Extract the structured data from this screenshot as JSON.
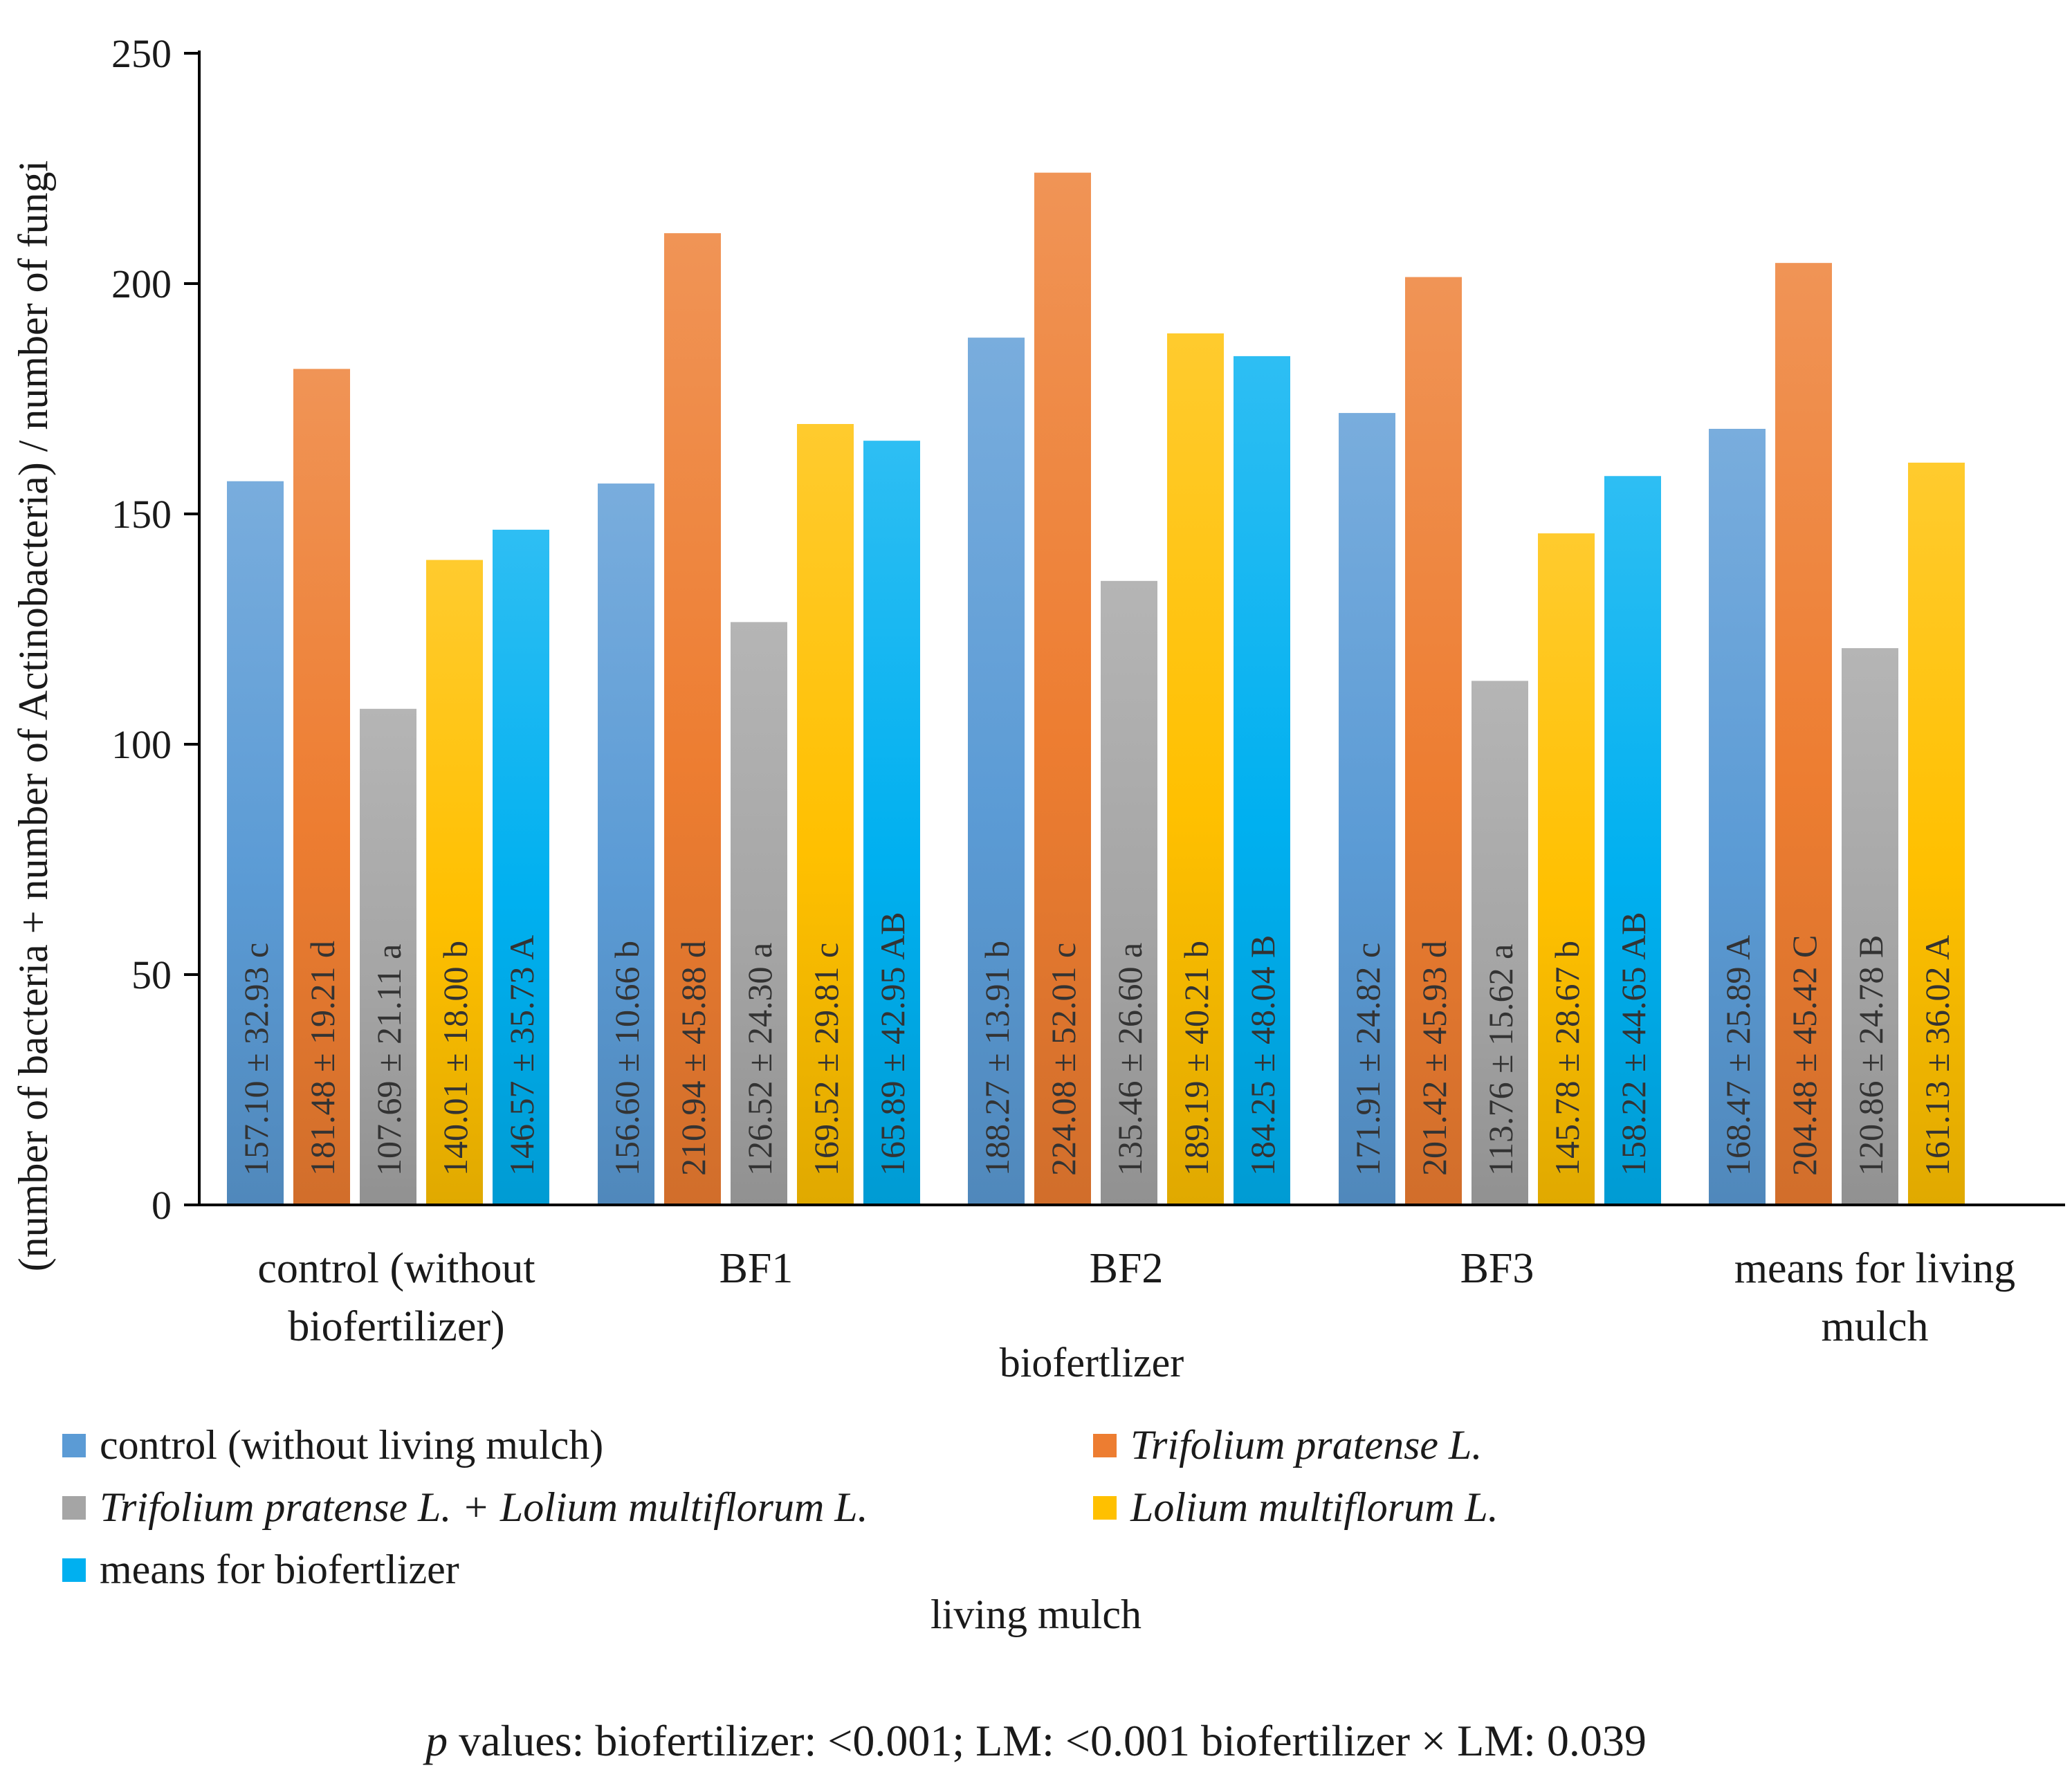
{
  "chart_data": {
    "type": "bar",
    "ylabel": "(number of bacteria + number of Actinobacteria) / number of fungi",
    "xlabel": "biofertlizer",
    "ylim": [
      0,
      250
    ],
    "yticks": [
      0,
      50,
      100,
      150,
      200,
      250
    ],
    "grid": false,
    "categories": [
      "control (without biofertilizer)",
      "BF1",
      "BF2",
      "BF3",
      "means for living mulch"
    ],
    "category_lines": [
      [
        "control (without",
        "biofertilizer)"
      ],
      [
        "BF1"
      ],
      [
        "BF2"
      ],
      [
        "BF3"
      ],
      [
        "means for living",
        "mulch"
      ]
    ],
    "legend_title": "living  mulch",
    "series": [
      {
        "name": "control (without living mulch)",
        "color": "#5B9BD5",
        "italic": false,
        "values": [
          157.1,
          156.6,
          188.27,
          171.91,
          168.47
        ],
        "labels": [
          "157.10 ± 32.93 c",
          "156.60 ± 10.66 b",
          "188.27 ± 13.91 b",
          "171.91 ± 24.82 c",
          "168.47 ± 25.89 A"
        ]
      },
      {
        "name": "Trifolium pratense L.",
        "color": "#ED7D31",
        "italic": true,
        "values": [
          181.48,
          210.94,
          224.08,
          201.42,
          204.48
        ],
        "labels": [
          "181.48 ± 19.21 d",
          "210.94 ± 45.88 d",
          "224.08 ± 52.01 c",
          "201.42 ± 45.93 d",
          "204.48 ± 45.42 C"
        ]
      },
      {
        "name": "Trifolium pratense L. + Lolium multiflorum L.",
        "color": "#A5A5A5",
        "italic": true,
        "values": [
          107.69,
          126.52,
          135.46,
          113.76,
          120.86
        ],
        "labels": [
          "107.69 ± 21.11 a",
          "126.52 ± 24.30 a",
          "135.46 ± 26.60 a",
          "113.76 ± 15.62 a",
          "120.86 ± 24.78 B"
        ]
      },
      {
        "name": "Lolium multiflorum L.",
        "color": "#FFC000",
        "italic": true,
        "values": [
          140.01,
          169.52,
          189.19,
          145.78,
          161.13
        ],
        "labels": [
          "140.01 ± 18.00 b",
          "169.52 ± 29.81 c",
          "189.19 ± 40.21 b",
          "145.78 ± 28.67 b",
          "161.13 ± 36.02 A"
        ]
      },
      {
        "name": "means for biofertlizer",
        "color": "#00B0F0",
        "italic": false,
        "values": [
          146.57,
          165.89,
          184.25,
          158.22,
          null
        ],
        "labels": [
          "146.57 ± 35.73 A",
          "165.89 ± 42.95 AB",
          "184.25 ± 48.04 B",
          "158.22 ± 44.65 AB",
          null
        ]
      }
    ]
  },
  "legend": {
    "title": "living  mulch",
    "items": [
      {
        "label": "control (without living mulch)",
        "color": "#5B9BD5",
        "italic": false
      },
      {
        "label": "Trifolium pratense L.",
        "color": "#ED7D31",
        "italic": true
      },
      {
        "label": "Trifolium pratense L. + Lolium multiflorum L.",
        "color": "#A5A5A5",
        "italic": true
      },
      {
        "label": "Lolium multiflorum L.",
        "color": "#FFC000",
        "italic": true
      },
      {
        "label": "means for biofertlizer",
        "color": "#00B0F0",
        "italic": false
      }
    ]
  },
  "footer": {
    "p_symbol": "p",
    "p_text": " values: biofertilizer: <0.001; LM: <0.001 biofertilizer × LM:  0.039"
  }
}
